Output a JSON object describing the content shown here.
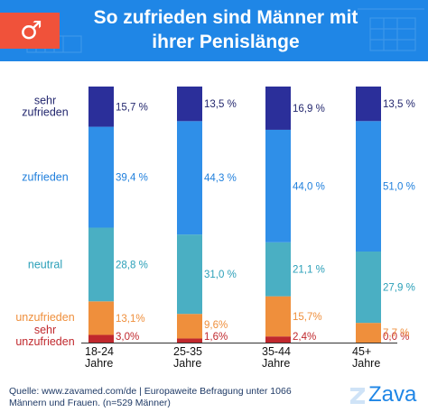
{
  "header": {
    "icon": "male-symbol-icon",
    "icon_glyph": "♂",
    "title_line1": "So zufrieden sind Männer mit",
    "title_line2": "ihrer Penislänge",
    "background_color": "#1f86e6",
    "badge_color": "#f0523a"
  },
  "chart_data": {
    "type": "bar",
    "stacked": true,
    "normalized": true,
    "categories": [
      "18-24 Jahre",
      "25-35 Jahre",
      "35-44 Jahre",
      "45+ Jahre"
    ],
    "category_lines": [
      [
        "18-24",
        "Jahre"
      ],
      [
        "25-35",
        "Jahre"
      ],
      [
        "35-44",
        "Jahre"
      ],
      [
        "45+",
        "Jahre"
      ]
    ],
    "series": [
      {
        "name": "sehr unzufrieden",
        "label_lines": [
          "sehr",
          "unzufrieden"
        ],
        "color": "#c0282d",
        "label_color": "#c0282d",
        "values": [
          3.0,
          1.6,
          2.4,
          0.0
        ],
        "value_labels": [
          "3,0%",
          "1,6%",
          "2,4%",
          "0,0 %"
        ]
      },
      {
        "name": "unzufrieden",
        "label_lines": [
          "unzufrieden"
        ],
        "color": "#ef8f3c",
        "label_color": "#ef8f3c",
        "values": [
          13.1,
          9.6,
          15.7,
          7.7
        ],
        "value_labels": [
          "13,1%",
          "9,6%",
          "15,7%",
          "7,7 %"
        ]
      },
      {
        "name": "neutral",
        "label_lines": [
          "neutral"
        ],
        "color": "#4aafc3",
        "label_color": "#2a9fb8",
        "values": [
          28.8,
          31.0,
          21.1,
          27.9
        ],
        "value_labels": [
          "28,8 %",
          "31,0 %",
          "21,1 %",
          "27,9 %"
        ]
      },
      {
        "name": "zufrieden",
        "label_lines": [
          "zufrieden"
        ],
        "color": "#2f8fe8",
        "label_color": "#1f7fdc",
        "values": [
          39.4,
          44.3,
          44.0,
          51.0
        ],
        "value_labels": [
          "39,4 %",
          "44,3 %",
          "44,0 %",
          "51,0 %"
        ]
      },
      {
        "name": "sehr zufrieden",
        "label_lines": [
          "sehr",
          "zufrieden"
        ],
        "color": "#2b2f9a",
        "label_color": "#23276e",
        "values": [
          15.7,
          13.5,
          16.9,
          13.5
        ],
        "value_labels": [
          "15,7 %",
          "13,5 %",
          "16,9 %",
          "13,5 %"
        ]
      }
    ]
  },
  "footer": {
    "source_line1": "Quelle: www.zavamed.com/de | Europaweite Befragung unter 1066",
    "source_line2": "Männern und Frauen. (n=529 Männer)",
    "logo_text": "Zava",
    "logo_color": "#1f86e6"
  }
}
